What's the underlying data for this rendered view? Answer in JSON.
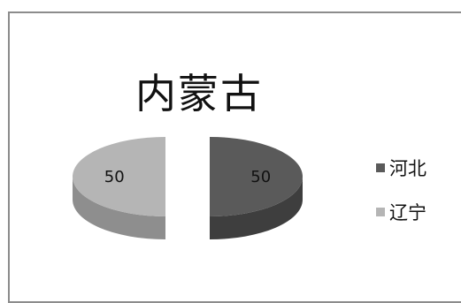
{
  "chart_data": {
    "type": "pie",
    "title": "内蒙古",
    "categories": [
      "河北",
      "辽宁"
    ],
    "values": [
      50,
      50
    ],
    "data_labels": [
      "50",
      "50"
    ],
    "colors": [
      "#5a5a5a",
      "#b5b5b5"
    ],
    "side_colors": [
      "#3e3e3e",
      "#8e8e8e"
    ],
    "legend_position": "right",
    "style": "3d-exploded"
  }
}
